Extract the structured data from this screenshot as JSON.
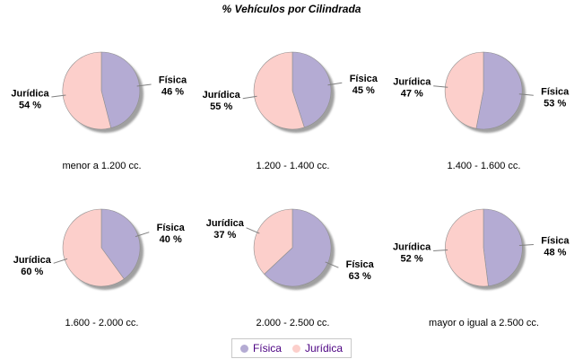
{
  "title": "% Vehículos por Cilindrada",
  "colors": {
    "fisica": "#B4ABD3",
    "juridica": "#FCCFCB",
    "shadow": "#969696",
    "slice_border": "#8F8F8F",
    "leader_line": "#808080",
    "label_text": "#000000",
    "legend_text": "#4B0082",
    "legend_border": "#C8C8C8"
  },
  "legend": {
    "items": [
      {
        "label": "Física",
        "swatch": "fisica"
      },
      {
        "label": "Jurídica",
        "swatch": "juridica"
      }
    ]
  },
  "chart_data": {
    "type": "pie",
    "title": "% Vehículos por Cilindrada",
    "series_labels": [
      "Física",
      "Jurídica"
    ],
    "value_suffix": " %",
    "start_angle_deg": 0,
    "direction": "clockwise",
    "legend_position": "bottom",
    "grid": "2 rows x 3 cols",
    "pies": [
      {
        "category": "menor a 1.200 cc.",
        "fisica": 46,
        "juridica": 54
      },
      {
        "category": "1.200 - 1.400 cc.",
        "fisica": 45,
        "juridica": 55
      },
      {
        "category": "1.400 - 1.600 cc.",
        "fisica": 53,
        "juridica": 47
      },
      {
        "category": "1.600 - 2.000 cc.",
        "fisica": 40,
        "juridica": 60
      },
      {
        "category": "2.000 - 2.500 cc.",
        "fisica": 63,
        "juridica": 37
      },
      {
        "category": "mayor o igual a 2.500 cc.",
        "fisica": 48,
        "juridica": 52
      }
    ]
  }
}
